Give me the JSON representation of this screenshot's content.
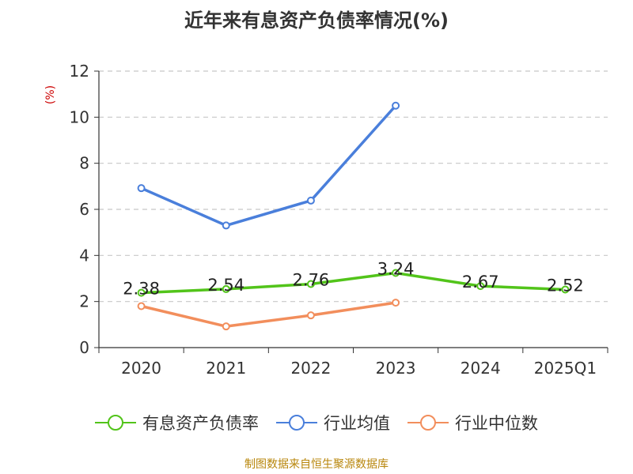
{
  "chart_data": {
    "type": "line",
    "title": "近年来有息资产负债率情况(%)",
    "ylabel": "(%)",
    "categories": [
      "2020",
      "2021",
      "2022",
      "2023",
      "2024",
      "2025Q1"
    ],
    "ylim": [
      0,
      12
    ],
    "yticks": [
      0,
      2,
      4,
      6,
      8,
      10,
      12
    ],
    "grid": true,
    "legend_position": "bottom",
    "series": [
      {
        "name": "有息资产负债率",
        "color": "#52c41a",
        "values": [
          2.38,
          2.54,
          2.76,
          3.24,
          2.67,
          2.52
        ],
        "labels": [
          "2.38",
          "2.54",
          "2.76",
          "3.24",
          "2.67",
          "2.52"
        ]
      },
      {
        "name": "行业均值",
        "color": "#4a7fdb",
        "values": [
          6.92,
          5.3,
          6.38,
          10.5,
          null,
          null
        ]
      },
      {
        "name": "行业中位数",
        "color": "#f28e5c",
        "values": [
          1.8,
          0.92,
          1.4,
          1.95,
          null,
          null
        ]
      }
    ]
  },
  "source": "制图数据来自恒生聚源数据库"
}
